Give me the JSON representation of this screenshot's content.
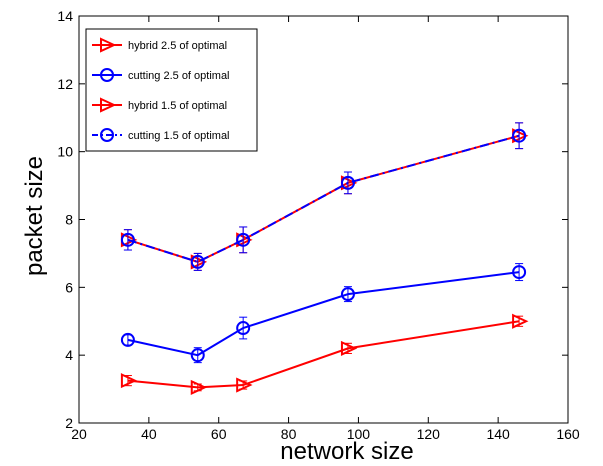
{
  "chart_data": {
    "type": "line",
    "xlabel": "network size",
    "ylabel": "packet size",
    "xlim": [
      20,
      160
    ],
    "ylim": [
      2,
      14
    ],
    "xticks": [
      "20",
      "40",
      "60",
      "80",
      "100",
      "120",
      "140",
      "160"
    ],
    "yticks": [
      "2",
      "4",
      "6",
      "8",
      "10",
      "12",
      "14"
    ],
    "grid": false,
    "legend_position": "top-left",
    "x": [
      34,
      54,
      67,
      97,
      146
    ],
    "series": [
      {
        "name": "hybrid 2.5 of optimal",
        "color": "#ff0000",
        "marker": "triangle-right",
        "linestyle": "solid",
        "values": [
          7.4,
          6.75,
          7.4,
          9.08,
          10.47
        ],
        "errors": [
          0.3,
          0.25,
          0.38,
          0.32,
          0.38
        ]
      },
      {
        "name": "cutting 2.5 of optimal",
        "color": "#0000ff",
        "marker": "circle",
        "linestyle": "solid",
        "values": [
          4.45,
          4.0,
          4.8,
          5.8,
          6.45
        ],
        "errors": [
          0.15,
          0.22,
          0.32,
          0.22,
          0.25
        ]
      },
      {
        "name": "hybrid 1.5 of optimal",
        "color": "#ff0000",
        "marker": "triangle-right",
        "linestyle": "solid",
        "values": [
          3.25,
          3.05,
          3.12,
          4.2,
          5.0
        ],
        "errors": [
          0.15,
          0.1,
          0.12,
          0.15,
          0.15
        ]
      },
      {
        "name": "cutting 1.5 of optimal",
        "color": "#0000ff",
        "marker": "circle",
        "linestyle": "dashdot",
        "values": [
          7.4,
          6.75,
          7.4,
          9.08,
          10.47
        ],
        "errors": [
          0.3,
          0.25,
          0.38,
          0.32,
          0.38
        ]
      }
    ]
  }
}
